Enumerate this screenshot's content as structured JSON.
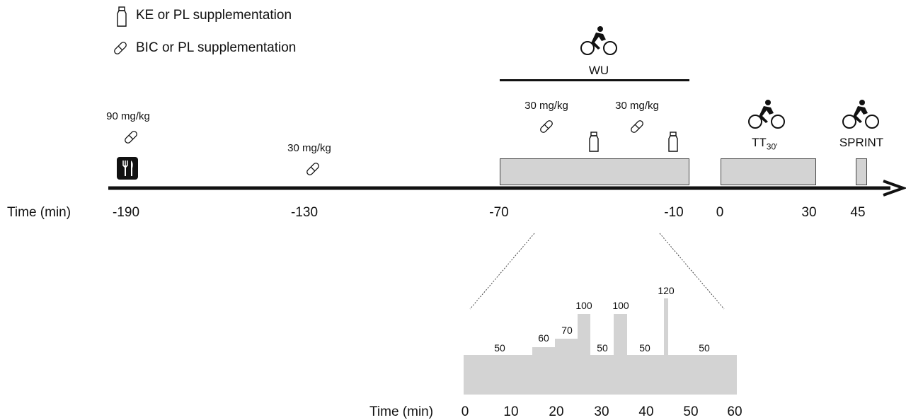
{
  "legend": {
    "ke": "KE or PL supplementation",
    "bic": "BIC or PL supplementation"
  },
  "time_label": "Time (min)",
  "timeline": {
    "ticks": [
      "-190",
      "-130",
      "-70",
      "-10",
      "0",
      "30",
      "45"
    ],
    "doses": [
      "90 mg/kg",
      "30 mg/kg",
      "30 mg/kg",
      "30 mg/kg"
    ],
    "wu_label": "WU",
    "tt_label": "TT",
    "tt_sub": "30′",
    "sprint_label": "SPRINT"
  },
  "warmup_profile": {
    "ticks": [
      "0",
      "10",
      "20",
      "30",
      "40",
      "50",
      "60"
    ],
    "segment_labels": [
      "50",
      "60",
      "70",
      "100",
      "50",
      "100",
      "50",
      "120",
      "50"
    ],
    "segments": [
      {
        "start": 0,
        "end": 15,
        "intensity": 50
      },
      {
        "start": 15,
        "end": 20,
        "intensity": 60
      },
      {
        "start": 20,
        "end": 25,
        "intensity": 70
      },
      {
        "start": 25,
        "end": 27,
        "intensity": 100
      },
      {
        "start": 27,
        "end": 33,
        "intensity": 50
      },
      {
        "start": 33,
        "end": 36,
        "intensity": 100
      },
      {
        "start": 36,
        "end": 44,
        "intensity": 50
      },
      {
        "start": 44,
        "end": 45,
        "intensity": 120
      },
      {
        "start": 45,
        "end": 60,
        "intensity": 50
      }
    ]
  },
  "icons": {
    "bottle": "bottle-icon",
    "pill": "pill-icon",
    "meal": "fork-knife-icon",
    "cyclist": "cyclist-icon"
  }
}
